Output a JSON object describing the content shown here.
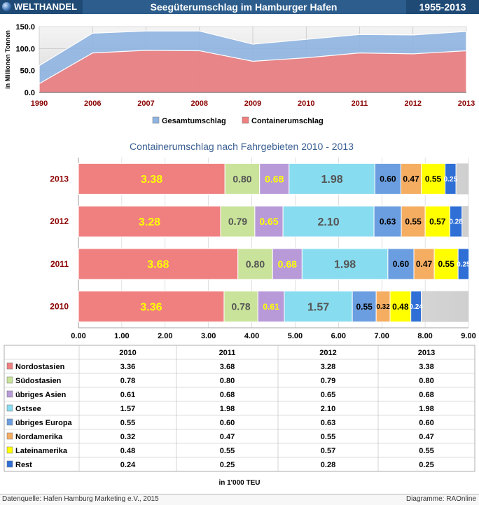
{
  "header": {
    "left": "WELTHANDEL",
    "title": "Seegüterumschlag im Hamburger Hafen",
    "right": "1955-2013"
  },
  "chart_data": [
    {
      "type": "area",
      "categories": [
        "1990",
        "2006",
        "2007",
        "2008",
        "2009",
        "2010",
        "2011",
        "2012",
        "2013"
      ],
      "series": [
        {
          "name": "Gesamtumschlag",
          "values": [
            61,
            135,
            140,
            140,
            110,
            121,
            132,
            131,
            139
          ],
          "color": "#8fb4e0"
        },
        {
          "name": "Containerumschlag",
          "values": [
            20,
            90,
            96,
            95,
            71,
            79,
            90,
            88,
            95
          ],
          "color": "#f07f7f"
        }
      ],
      "ylabel": "in Millionen Tonnen",
      "ylim": [
        0,
        150
      ],
      "yticks": [
        "0.0",
        "50.0",
        "100.0",
        "150.0"
      ],
      "legend": "bottom"
    },
    {
      "type": "bar",
      "orientation": "horizontal",
      "stacked": true,
      "title": "Containerumschlag nach Fahrgebieten 2010 - 2013",
      "categories": [
        "2013",
        "2012",
        "2011",
        "2010"
      ],
      "xlim": [
        0,
        9
      ],
      "xticks": [
        "0.00",
        "1.00",
        "2.00",
        "3.00",
        "4.00",
        "5.00",
        "6.00",
        "7.00",
        "8.00",
        "9.00"
      ],
      "series": [
        {
          "name": "Nordostasien",
          "values": [
            3.38,
            3.28,
            3.68,
            3.36
          ],
          "labels": [
            "3.38",
            "3.28",
            "3.68",
            "3.36"
          ],
          "color": "#f08080",
          "labelColor": "#ffff00"
        },
        {
          "name": "Südostasien",
          "values": [
            0.8,
            0.79,
            0.8,
            0.78
          ],
          "labels": [
            "0.80",
            "0.79",
            "0.80",
            "0.78"
          ],
          "color": "#c9e39a",
          "labelColor": "#555555"
        },
        {
          "name": "übriges Asien",
          "values": [
            0.68,
            0.65,
            0.68,
            0.61
          ],
          "labels": [
            "0.68",
            "0.65",
            "0.68",
            "0.61"
          ],
          "color": "#b89ad9",
          "labelColor": "#ffff00"
        },
        {
          "name": "Ostsee",
          "values": [
            1.98,
            2.1,
            1.98,
            1.57
          ],
          "labels": [
            "1.98",
            "2.10",
            "1.98",
            "1.57"
          ],
          "color": "#88dcef",
          "labelColor": "#555555"
        },
        {
          "name": "übriges Europa",
          "values": [
            0.6,
            0.63,
            0.6,
            0.55
          ],
          "labels": [
            "0.60",
            "0.63",
            "0.60",
            "0.55"
          ],
          "color": "#6b9ee0",
          "labelColor": "#000000"
        },
        {
          "name": "Nordamerika",
          "values": [
            0.47,
            0.55,
            0.47,
            0.32
          ],
          "labels": [
            "0.47",
            "0.55",
            "0.47",
            "0.32"
          ],
          "color": "#f5ad62",
          "labelColor": "#000000"
        },
        {
          "name": "Lateinamerika",
          "values": [
            0.55,
            0.57,
            0.55,
            0.48
          ],
          "labels": [
            "0.55",
            "0.57",
            "0.55",
            "0.48"
          ],
          "color": "#ffff00",
          "labelColor": "#000000"
        },
        {
          "name": "Rest",
          "values": [
            0.25,
            0.28,
            0.25,
            0.24
          ],
          "labels": [
            "0.25",
            "0.28",
            "0.25",
            "0.24"
          ],
          "color": "#2f6fd6",
          "labelColor": "#ffffff"
        }
      ]
    },
    {
      "type": "table",
      "columns": [
        "2010",
        "2011",
        "2012",
        "2013"
      ],
      "rows": [
        {
          "name": "Nordostasien",
          "values": [
            "3.36",
            "3.68",
            "3.28",
            "3.38"
          ]
        },
        {
          "name": "Südostasien",
          "values": [
            "0.78",
            "0.80",
            "0.79",
            "0.80"
          ]
        },
        {
          "name": "übriges Asien",
          "values": [
            "0.61",
            "0.68",
            "0.65",
            "0.68"
          ]
        },
        {
          "name": "Ostsee",
          "values": [
            "1.57",
            "1.98",
            "2.10",
            "1.98"
          ]
        },
        {
          "name": "übriges Europa",
          "values": [
            "0.55",
            "0.60",
            "0.63",
            "0.60"
          ]
        },
        {
          "name": "Nordamerika",
          "values": [
            "0.32",
            "0.47",
            "0.55",
            "0.47"
          ]
        },
        {
          "name": "Lateinamerika",
          "values": [
            "0.48",
            "0.55",
            "0.57",
            "0.55"
          ]
        },
        {
          "name": "Rest",
          "values": [
            "0.24",
            "0.25",
            "0.28",
            "0.25"
          ]
        }
      ],
      "unit": "in 1'000 TEU"
    }
  ],
  "footer": {
    "source": "Datenquelle: Hafen Hamburg Marketing e.V., 2015",
    "credit": "Diagramme: RAOnline"
  }
}
